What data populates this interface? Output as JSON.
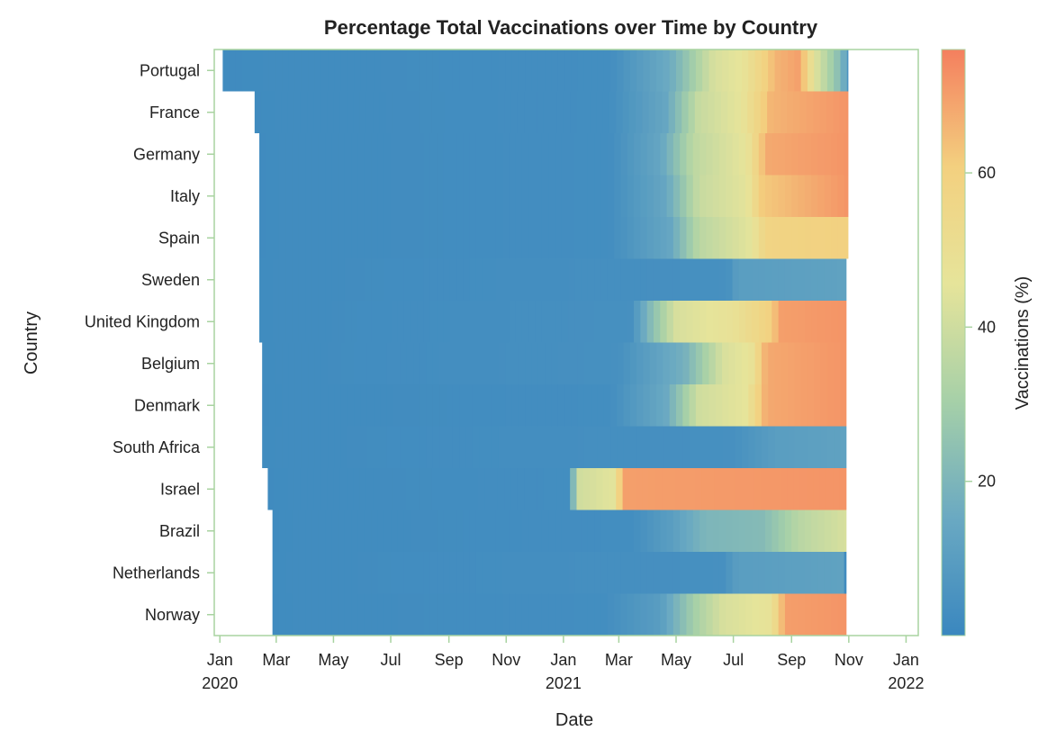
{
  "chart_data": {
    "type": "heatmap",
    "title": "Percentage Total Vaccinations over Time by Country",
    "xlabel": "Date",
    "ylabel": "Country",
    "colorbar_label": "Vaccinations (%)",
    "colorbar_ticks": [
      20,
      40,
      60
    ],
    "colorbar_range": [
      0,
      76
    ],
    "colorscale": [
      "#3a87bf",
      "#6aa9c2",
      "#a6d0a8",
      "#e6e49a",
      "#f3d07f",
      "#f47f5e"
    ],
    "x_axis_range": [
      "2019-12-26",
      "2022-01-14"
    ],
    "x_ticks": [
      {
        "date": "2020-01-01",
        "line1": "Jan",
        "line2": "2020"
      },
      {
        "date": "2020-03-01",
        "line1": "Mar",
        "line2": ""
      },
      {
        "date": "2020-05-01",
        "line1": "May",
        "line2": ""
      },
      {
        "date": "2020-07-01",
        "line1": "Jul",
        "line2": ""
      },
      {
        "date": "2020-09-01",
        "line1": "Sep",
        "line2": ""
      },
      {
        "date": "2020-11-01",
        "line1": "Nov",
        "line2": ""
      },
      {
        "date": "2021-01-01",
        "line1": "Jan",
        "line2": "2021"
      },
      {
        "date": "2021-03-01",
        "line1": "Mar",
        "line2": ""
      },
      {
        "date": "2021-05-01",
        "line1": "May",
        "line2": ""
      },
      {
        "date": "2021-07-01",
        "line1": "Jul",
        "line2": ""
      },
      {
        "date": "2021-09-01",
        "line1": "Sep",
        "line2": ""
      },
      {
        "date": "2021-11-01",
        "line1": "Nov",
        "line2": ""
      },
      {
        "date": "2022-01-01",
        "line1": "Jan",
        "line2": "2022"
      }
    ],
    "grid": false,
    "series": [
      {
        "name": "Norway",
        "start": "2020-02-26",
        "end": "2021-10-29",
        "points": [
          [
            "2020-02-26",
            2
          ],
          [
            "2021-02-15",
            3
          ],
          [
            "2021-04-15",
            10
          ],
          [
            "2021-05-20",
            30
          ],
          [
            "2021-06-20",
            42
          ],
          [
            "2021-08-10",
            47
          ],
          [
            "2021-08-25",
            70
          ],
          [
            "2021-10-29",
            72
          ]
        ]
      },
      {
        "name": "Netherlands",
        "start": "2020-02-26",
        "end": "2021-10-29",
        "points": [
          [
            "2020-02-26",
            2
          ],
          [
            "2021-06-20",
            4
          ],
          [
            "2021-07-05",
            10
          ],
          [
            "2021-10-25",
            12
          ],
          [
            "2021-10-29",
            2
          ]
        ]
      },
      {
        "name": "Brazil",
        "start": "2020-02-26",
        "end": "2021-10-29",
        "points": [
          [
            "2020-02-26",
            2
          ],
          [
            "2021-03-15",
            3
          ],
          [
            "2021-04-25",
            10
          ],
          [
            "2021-06-01",
            20
          ],
          [
            "2021-08-01",
            22
          ],
          [
            "2021-09-10",
            35
          ],
          [
            "2021-10-29",
            42
          ]
        ]
      },
      {
        "name": "Israel",
        "start": "2020-02-21",
        "end": "2021-10-29",
        "points": [
          [
            "2020-02-21",
            2
          ],
          [
            "2021-01-08",
            3
          ],
          [
            "2021-01-15",
            40
          ],
          [
            "2021-02-25",
            45
          ],
          [
            "2021-03-05",
            70
          ],
          [
            "2021-10-29",
            72
          ]
        ]
      },
      {
        "name": "South Africa",
        "start": "2020-02-15",
        "end": "2021-10-29",
        "points": [
          [
            "2020-02-15",
            2
          ],
          [
            "2021-07-01",
            4
          ],
          [
            "2021-08-15",
            10
          ],
          [
            "2021-10-29",
            12
          ]
        ]
      },
      {
        "name": "Denmark",
        "start": "2020-02-15",
        "end": "2021-10-29",
        "points": [
          [
            "2020-02-15",
            2
          ],
          [
            "2021-02-20",
            3
          ],
          [
            "2021-04-20",
            15
          ],
          [
            "2021-05-25",
            40
          ],
          [
            "2021-07-15",
            46
          ],
          [
            "2021-08-05",
            68
          ],
          [
            "2021-10-29",
            72
          ]
        ]
      },
      {
        "name": "Belgium",
        "start": "2020-02-15",
        "end": "2021-10-29",
        "points": [
          [
            "2020-02-15",
            2
          ],
          [
            "2021-03-01",
            4
          ],
          [
            "2021-05-10",
            18
          ],
          [
            "2021-06-20",
            42
          ],
          [
            "2021-07-20",
            47
          ],
          [
            "2021-08-05",
            68
          ],
          [
            "2021-10-29",
            72
          ]
        ]
      },
      {
        "name": "United Kingdom",
        "start": "2020-02-12",
        "end": "2021-10-29",
        "points": [
          [
            "2020-02-12",
            2
          ],
          [
            "2021-03-15",
            4
          ],
          [
            "2021-04-01",
            20
          ],
          [
            "2021-05-01",
            42
          ],
          [
            "2021-07-01",
            48
          ],
          [
            "2021-08-10",
            60
          ],
          [
            "2021-08-20",
            70
          ],
          [
            "2021-10-29",
            72
          ]
        ]
      },
      {
        "name": "Sweden",
        "start": "2020-02-12",
        "end": "2021-10-29",
        "points": [
          [
            "2020-02-12",
            2
          ],
          [
            "2021-06-25",
            4
          ],
          [
            "2021-07-05",
            10
          ],
          [
            "2021-10-29",
            12
          ]
        ]
      },
      {
        "name": "Spain",
        "start": "2020-02-12",
        "end": "2021-10-31",
        "points": [
          [
            "2020-02-12",
            2
          ],
          [
            "2021-02-20",
            3
          ],
          [
            "2021-04-25",
            14
          ],
          [
            "2021-05-25",
            35
          ],
          [
            "2021-07-20",
            45
          ],
          [
            "2021-08-05",
            58
          ],
          [
            "2021-10-31",
            60
          ]
        ]
      },
      {
        "name": "Italy",
        "start": "2020-02-12",
        "end": "2021-10-31",
        "points": [
          [
            "2020-02-12",
            2
          ],
          [
            "2021-02-20",
            3
          ],
          [
            "2021-04-20",
            14
          ],
          [
            "2021-05-25",
            38
          ],
          [
            "2021-07-15",
            45
          ],
          [
            "2021-08-01",
            62
          ],
          [
            "2021-10-31",
            72
          ]
        ]
      },
      {
        "name": "Germany",
        "start": "2020-02-12",
        "end": "2021-10-31",
        "points": [
          [
            "2020-02-12",
            2
          ],
          [
            "2021-02-20",
            3
          ],
          [
            "2021-04-15",
            14
          ],
          [
            "2021-05-20",
            36
          ],
          [
            "2021-07-15",
            46
          ],
          [
            "2021-08-05",
            68
          ],
          [
            "2021-10-31",
            72
          ]
        ]
      },
      {
        "name": "France",
        "start": "2020-02-07",
        "end": "2021-10-31",
        "points": [
          [
            "2020-02-07",
            2
          ],
          [
            "2021-02-20",
            3
          ],
          [
            "2021-04-20",
            14
          ],
          [
            "2021-05-25",
            38
          ],
          [
            "2021-07-10",
            46
          ],
          [
            "2021-08-10",
            66
          ],
          [
            "2021-10-31",
            72
          ]
        ]
      },
      {
        "name": "Portugal",
        "start": "2020-01-04",
        "end": "2021-10-31",
        "points": [
          [
            "2020-01-04",
            2
          ],
          [
            "2020-01-20",
            2
          ],
          [
            "2021-02-20",
            3
          ],
          [
            "2021-04-25",
            16
          ],
          [
            "2021-06-10",
            42
          ],
          [
            "2021-07-10",
            46
          ],
          [
            "2021-08-15",
            66
          ],
          [
            "2021-09-10",
            70
          ],
          [
            "2021-09-25",
            45
          ],
          [
            "2021-10-25",
            20
          ],
          [
            "2021-10-31",
            5
          ]
        ]
      }
    ]
  }
}
